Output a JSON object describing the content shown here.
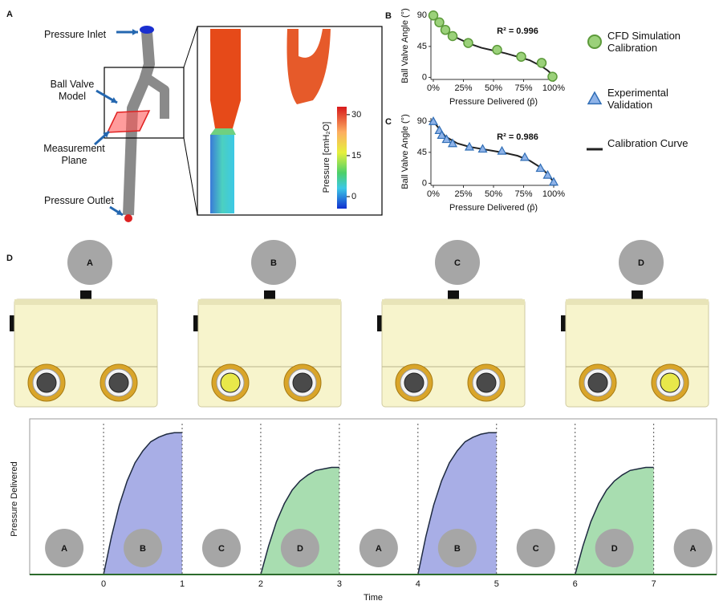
{
  "panel_a": {
    "label": "A",
    "pressure_inlet": "Pressure Inlet",
    "ball_valve_model": "Ball Valve Model",
    "measurement_plane": "Measurement Plane",
    "pressure_outlet": "Pressure Outlet",
    "colorbar": {
      "label": "Pressure [cmH₂O]",
      "lim": [
        -4.4,
        32.9
      ],
      "ticks": [
        0,
        15,
        30
      ]
    }
  },
  "panel_d": {
    "label": "D",
    "states": [
      "A",
      "B",
      "C",
      "D"
    ]
  },
  "chart_data": [
    {
      "type": "scatter",
      "panel_label": "B",
      "xlabel": "Pressure Delivered (p̂)",
      "ylabel": "Ball Valve Angle (°)",
      "annotation": "R² = 0.996",
      "annotation_color": "#3a7d1e",
      "xlim": [
        -2,
        102
      ],
      "ylim": [
        -3,
        95
      ],
      "xticks": [
        {
          "value": 0,
          "label": "0%"
        },
        {
          "value": 25,
          "label": "25%"
        },
        {
          "value": 50,
          "label": "50%"
        },
        {
          "value": 75,
          "label": "75%"
        },
        {
          "value": 100,
          "label": "100%"
        }
      ],
      "yticks": [
        0,
        45,
        90
      ],
      "series": [
        {
          "name": "CFD Simulation Calibration",
          "mode": "circle",
          "color": "#9bd17a",
          "x": [
            0,
            5,
            10,
            16,
            29,
            53,
            73,
            90,
            99
          ],
          "values": [
            90,
            80,
            69,
            60,
            50,
            40,
            30,
            21,
            1
          ]
        },
        {
          "name": "Calibration Curve",
          "mode": "line",
          "color": "#222222",
          "x": [
            0,
            10,
            20,
            30,
            40,
            50,
            60,
            70,
            80,
            90,
            95,
            100
          ],
          "values": [
            90,
            70,
            57,
            49,
            43,
            39,
            35,
            30,
            25,
            16,
            10,
            2
          ]
        }
      ]
    },
    {
      "type": "scatter",
      "panel_label": "C",
      "xlabel": "Pressure Delivered (p̂)",
      "ylabel": "Ball Valve Angle (°)",
      "annotation": "R² = 0.986",
      "annotation_color": "#2c6fb7",
      "xlim": [
        -2,
        102
      ],
      "ylim": [
        -3,
        95
      ],
      "xticks": [
        {
          "value": 0,
          "label": "0%"
        },
        {
          "value": 25,
          "label": "25%"
        },
        {
          "value": 50,
          "label": "50%"
        },
        {
          "value": 75,
          "label": "75%"
        },
        {
          "value": 100,
          "label": "100%"
        }
      ],
      "yticks": [
        0,
        45,
        90
      ],
      "series": [
        {
          "name": "Experimental Validation",
          "mode": "triangle",
          "color": "#8fb3e8",
          "x": [
            0,
            5,
            7,
            11,
            16,
            30,
            41,
            57,
            76,
            89,
            95,
            100
          ],
          "values": [
            90,
            77,
            70,
            64,
            58,
            53,
            50,
            47,
            38,
            22,
            12,
            2
          ]
        },
        {
          "mode": "line",
          "color": "#222222",
          "x": [
            0,
            10,
            20,
            30,
            40,
            50,
            60,
            70,
            80,
            90,
            95,
            100
          ],
          "values": [
            90,
            68,
            58,
            53,
            50,
            47,
            44,
            40,
            33,
            22,
            13,
            2
          ]
        }
      ]
    },
    {
      "type": "area",
      "xlabel": "Time",
      "ylabel": "Pressure Delivered",
      "xlim": [
        -0.94,
        7.8
      ],
      "ylim": [
        0,
        1
      ],
      "xticks": [
        0,
        1,
        2,
        3,
        4,
        5,
        6,
        7
      ],
      "phases": [
        "A",
        "B",
        "C",
        "D",
        "A",
        "B",
        "C",
        "D",
        "A"
      ],
      "series": [
        {
          "color": "#a8aee6",
          "x": [
            0,
            0.1,
            0.2,
            0.3,
            0.4,
            0.5,
            0.6,
            0.7,
            0.8,
            0.9,
            1
          ],
          "values": [
            0,
            0.25,
            0.46,
            0.62,
            0.74,
            0.82,
            0.88,
            0.91,
            0.93,
            0.94,
            0.94
          ]
        },
        {
          "color": "#a8ddb0",
          "x": [
            2,
            2.1,
            2.2,
            2.3,
            2.4,
            2.5,
            2.6,
            2.7,
            2.8,
            2.9,
            3
          ],
          "values": [
            0,
            0.19,
            0.35,
            0.47,
            0.56,
            0.62,
            0.66,
            0.69,
            0.7,
            0.71,
            0.71
          ]
        },
        {
          "color": "#a8aee6",
          "x": [
            4,
            4.1,
            4.2,
            4.3,
            4.4,
            4.5,
            4.6,
            4.7,
            4.8,
            4.9,
            5
          ],
          "values": [
            0,
            0.25,
            0.46,
            0.62,
            0.74,
            0.82,
            0.88,
            0.91,
            0.93,
            0.94,
            0.94
          ]
        },
        {
          "color": "#a8ddb0",
          "x": [
            6,
            6.1,
            6.2,
            6.3,
            6.4,
            6.5,
            6.6,
            6.7,
            6.8,
            6.9,
            7
          ],
          "values": [
            0,
            0.19,
            0.35,
            0.47,
            0.56,
            0.62,
            0.66,
            0.69,
            0.7,
            0.71,
            0.71
          ]
        }
      ]
    }
  ]
}
